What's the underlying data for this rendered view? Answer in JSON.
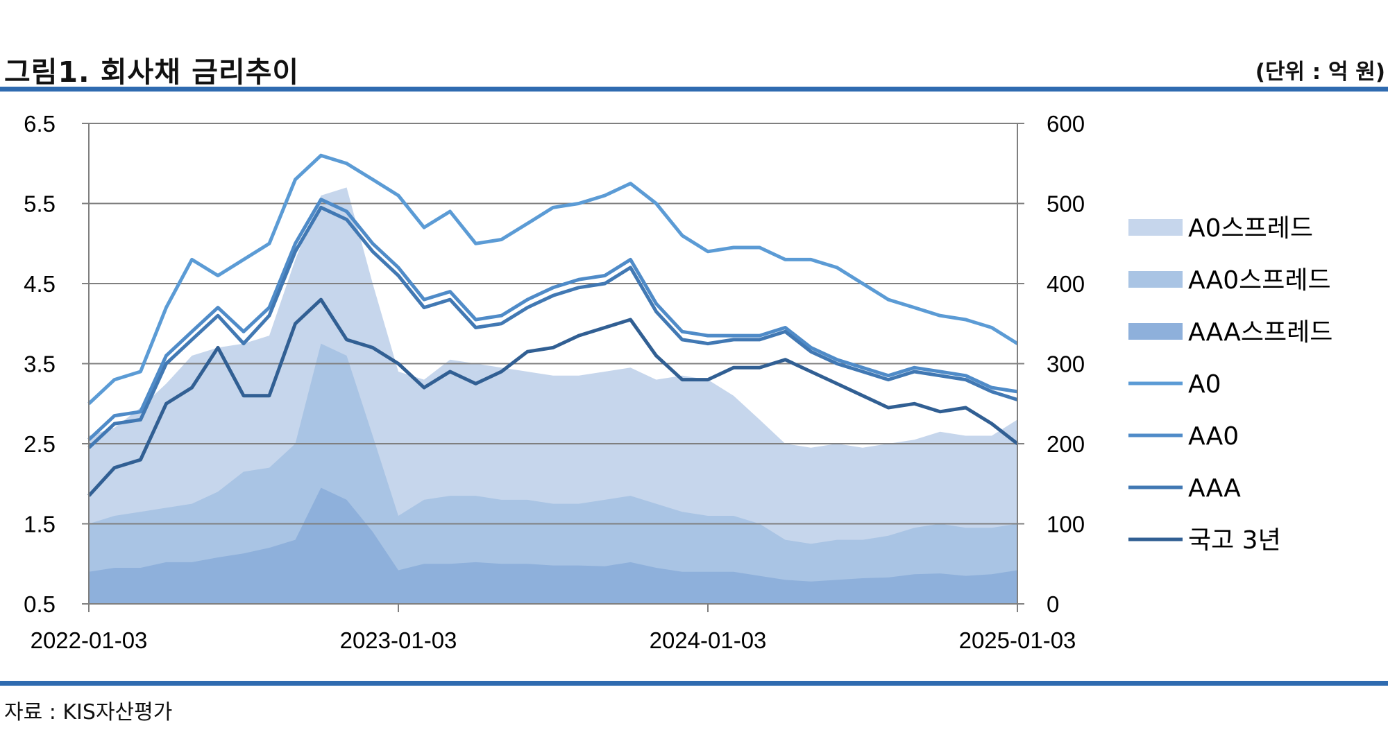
{
  "header": {
    "title": "그림1. 회사채 금리추이",
    "unit": "(단위 : 억 원)"
  },
  "footer": {
    "source": "자료 : KIS자산평가"
  },
  "colors": {
    "axis": "#7f7f7f",
    "grid": "#7f7f7f",
    "rule": "#2f6bb0",
    "A0_spread": "#c6d6ec",
    "AA0_spread": "#a9c4e4",
    "AAA_spread": "#8eb0db",
    "A0": "#5b9bd5",
    "AA0": "#4f8bc8",
    "AAA": "#4178b3",
    "KTB3Y": "#315f93"
  },
  "chart_data": {
    "type": "line",
    "x_ticks": [
      "2022-01-03",
      "2023-01-03",
      "2024-01-03",
      "2025-01-03"
    ],
    "y_left": {
      "ticks": [
        "6.5",
        "5.5",
        "4.5",
        "3.5",
        "2.5",
        "1.5",
        "0.5"
      ],
      "ylim": [
        0.5,
        6.5
      ]
    },
    "y_right": {
      "ticks": [
        "600",
        "500",
        "400",
        "300",
        "200",
        "100",
        "0"
      ],
      "ylim": [
        0,
        600
      ]
    },
    "legend": [
      "A0스프레드",
      "AA0스프레드",
      "AAA스프레드",
      "A0",
      "AA0",
      "AAA",
      "국고 3년"
    ],
    "legend_position": "right",
    "x": [
      2022.0,
      2022.083,
      2022.167,
      2022.25,
      2022.333,
      2022.417,
      2022.5,
      2022.583,
      2022.667,
      2022.75,
      2022.833,
      2022.917,
      2023.0,
      2023.083,
      2023.167,
      2023.25,
      2023.333,
      2023.417,
      2023.5,
      2023.583,
      2023.667,
      2023.75,
      2023.833,
      2023.917,
      2024.0,
      2024.083,
      2024.167,
      2024.25,
      2024.333,
      2024.417,
      2024.5,
      2024.583,
      2024.667,
      2024.75,
      2024.833,
      2024.917,
      2025.0
    ],
    "series": [
      {
        "name": "A0",
        "axis": "left",
        "values": [
          3.0,
          3.3,
          3.4,
          4.2,
          4.8,
          4.6,
          4.8,
          5.0,
          5.8,
          6.1,
          6.0,
          5.8,
          5.6,
          5.2,
          5.4,
          5.0,
          5.05,
          5.25,
          5.45,
          5.5,
          5.6,
          5.75,
          5.5,
          5.1,
          4.9,
          4.95,
          4.95,
          4.8,
          4.8,
          4.7,
          4.5,
          4.3,
          4.2,
          4.1,
          4.05,
          3.95,
          3.75
        ]
      },
      {
        "name": "AA0",
        "axis": "left",
        "values": [
          2.55,
          2.85,
          2.9,
          3.6,
          3.9,
          4.2,
          3.9,
          4.2,
          5.0,
          5.55,
          5.4,
          5.0,
          4.7,
          4.3,
          4.4,
          4.05,
          4.1,
          4.3,
          4.45,
          4.55,
          4.6,
          4.8,
          4.25,
          3.9,
          3.85,
          3.85,
          3.85,
          3.95,
          3.7,
          3.55,
          3.45,
          3.35,
          3.45,
          3.4,
          3.35,
          3.2,
          3.15
        ]
      },
      {
        "name": "AAA",
        "axis": "left",
        "values": [
          2.45,
          2.75,
          2.8,
          3.5,
          3.8,
          4.1,
          3.75,
          4.1,
          4.9,
          5.45,
          5.3,
          4.9,
          4.6,
          4.2,
          4.3,
          3.95,
          4.0,
          4.2,
          4.35,
          4.45,
          4.5,
          4.7,
          4.15,
          3.8,
          3.75,
          3.8,
          3.8,
          3.9,
          3.65,
          3.5,
          3.4,
          3.3,
          3.4,
          3.35,
          3.3,
          3.15,
          3.05
        ]
      },
      {
        "name": "국고 3년",
        "axis": "left",
        "values": [
          1.85,
          2.2,
          2.3,
          3.0,
          3.2,
          3.7,
          3.1,
          3.1,
          4.0,
          4.3,
          3.8,
          3.7,
          3.5,
          3.2,
          3.4,
          3.25,
          3.4,
          3.65,
          3.7,
          3.85,
          3.95,
          4.05,
          3.6,
          3.3,
          3.3,
          3.45,
          3.45,
          3.55,
          3.4,
          3.25,
          3.1,
          2.95,
          3.0,
          2.9,
          2.95,
          2.75,
          2.5
        ]
      },
      {
        "name": "A0스프레드",
        "axis": "right",
        "values": [
          210,
          220,
          245,
          275,
          310,
          320,
          325,
          335,
          430,
          510,
          520,
          400,
          290,
          280,
          305,
          300,
          295,
          290,
          285,
          285,
          290,
          295,
          280,
          285,
          280,
          260,
          230,
          200,
          195,
          200,
          195,
          200,
          205,
          215,
          210,
          210,
          230
        ]
      },
      {
        "name": "AA0스프레드",
        "axis": "right",
        "values": [
          100,
          110,
          115,
          120,
          125,
          140,
          165,
          170,
          200,
          325,
          310,
          210,
          110,
          130,
          135,
          135,
          130,
          130,
          125,
          125,
          130,
          135,
          125,
          115,
          110,
          110,
          100,
          80,
          75,
          80,
          80,
          85,
          95,
          100,
          95,
          95,
          100
        ]
      },
      {
        "name": "AAA스프레드",
        "axis": "right",
        "values": [
          40,
          45,
          45,
          52,
          52,
          58,
          63,
          70,
          80,
          145,
          130,
          90,
          42,
          50,
          50,
          52,
          50,
          50,
          48,
          48,
          47,
          52,
          45,
          40,
          40,
          40,
          35,
          30,
          28,
          30,
          32,
          33,
          37,
          38,
          35,
          37,
          42
        ]
      }
    ],
    "grid": true
  }
}
